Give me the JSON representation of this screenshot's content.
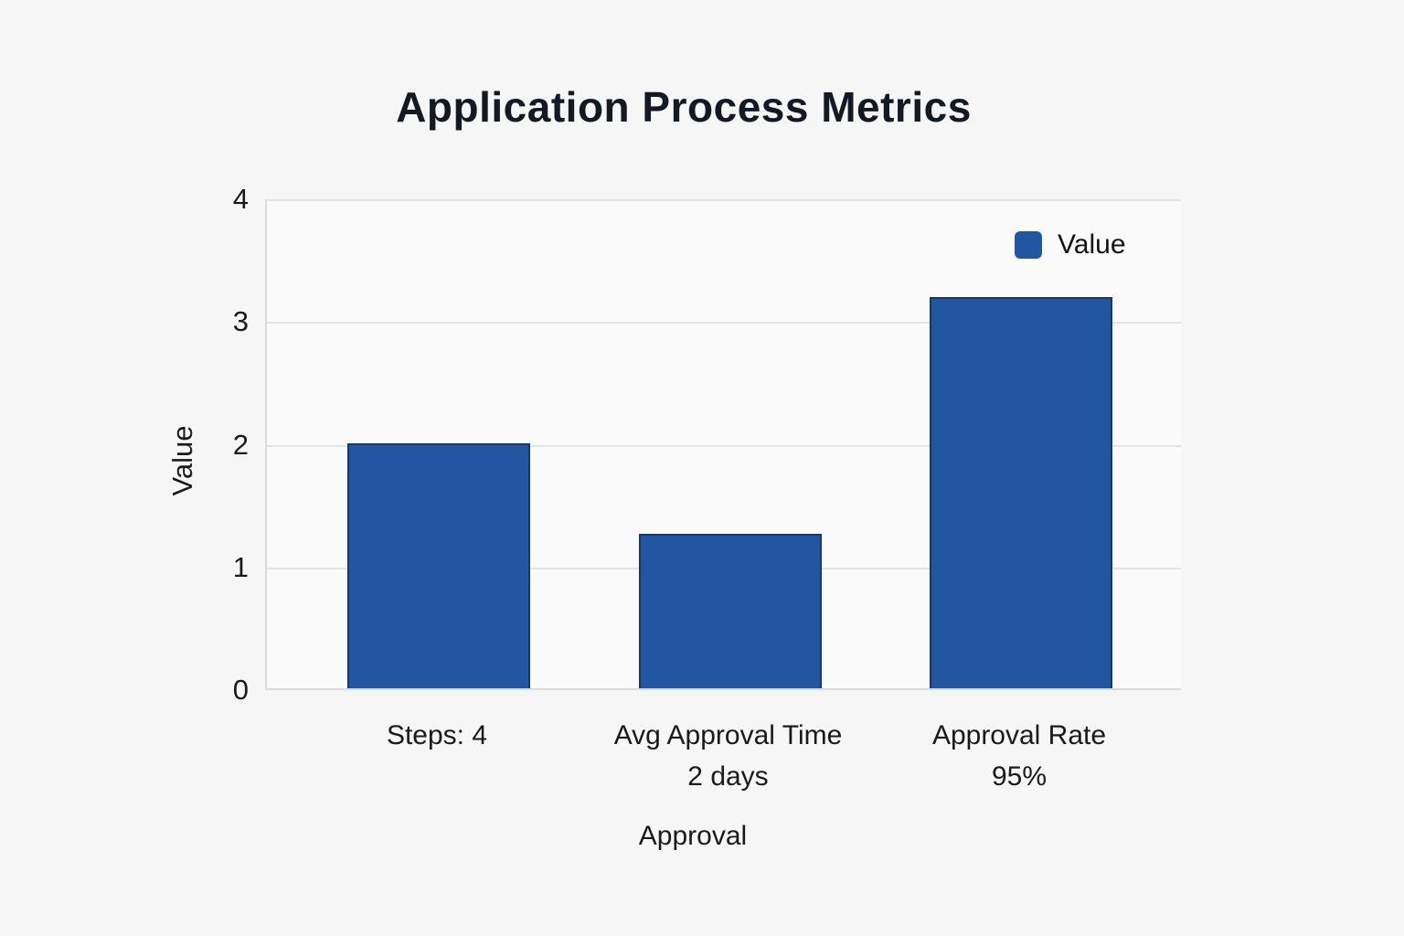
{
  "chart_data": {
    "type": "bar",
    "title": "Application Process Metrics",
    "xlabel": "Approval",
    "ylabel": "Value",
    "categories": [
      {
        "lines": [
          "Steps: 4"
        ]
      },
      {
        "lines": [
          "Avg Approval Time",
          "2 days"
        ]
      },
      {
        "lines": [
          "Approval Rate",
          "95%"
        ]
      }
    ],
    "series": [
      {
        "name": "Value",
        "values": [
          2.0,
          1.26,
          3.19
        ],
        "color": "#2356a0",
        "border_color": "#16386e"
      }
    ],
    "ylim": [
      0,
      4
    ],
    "yticks": [
      0,
      1,
      2,
      3,
      4
    ],
    "grid": true,
    "legend": {
      "position": "top-right",
      "entries": [
        {
          "label": "Value",
          "color": "#2356a0"
        }
      ]
    },
    "colors": {
      "page_background": "#f6f6f7",
      "plot_background": "#fafafa",
      "gridline": "#e4e4e6",
      "axis_line": "#dbdbdd",
      "title_text": "#131a24",
      "tick_text": "#1a1a1c"
    }
  }
}
